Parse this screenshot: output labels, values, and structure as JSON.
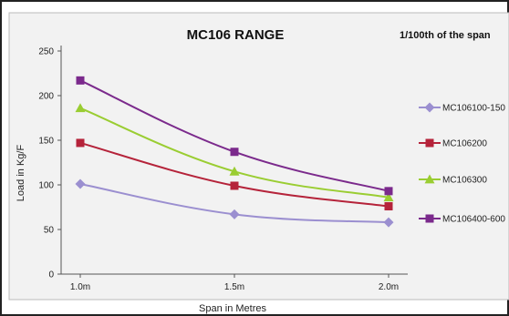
{
  "chart_data": {
    "type": "line",
    "title": "MC106 RANGE",
    "subtitle": "1/100th of the span",
    "xlabel": "Span in Metres",
    "ylabel": "Load in Kg/F",
    "categories": [
      "1.0m",
      "1.5m",
      "2.0m"
    ],
    "ylim": [
      0,
      250
    ],
    "yticks": [
      "0",
      "50",
      "100",
      "150",
      "200",
      "250"
    ],
    "grid": false,
    "legend_position": "right",
    "series": [
      {
        "name": "MC106100-150",
        "color": "#9b8fd0",
        "marker": "diamond",
        "values": [
          101,
          67,
          58
        ]
      },
      {
        "name": "MC106200",
        "color": "#b5233a",
        "marker": "square",
        "values": [
          147,
          99,
          76
        ]
      },
      {
        "name": "MC106300",
        "color": "#9acd32",
        "marker": "triangle",
        "values": [
          186,
          115,
          86
        ]
      },
      {
        "name": "MC106400-600",
        "color": "#7b2a8c",
        "marker": "square",
        "values": [
          217,
          137,
          93
        ]
      }
    ]
  },
  "colors": {
    "plot_background": "#f2f2f2",
    "border": "#222222",
    "axis": "#555555"
  }
}
